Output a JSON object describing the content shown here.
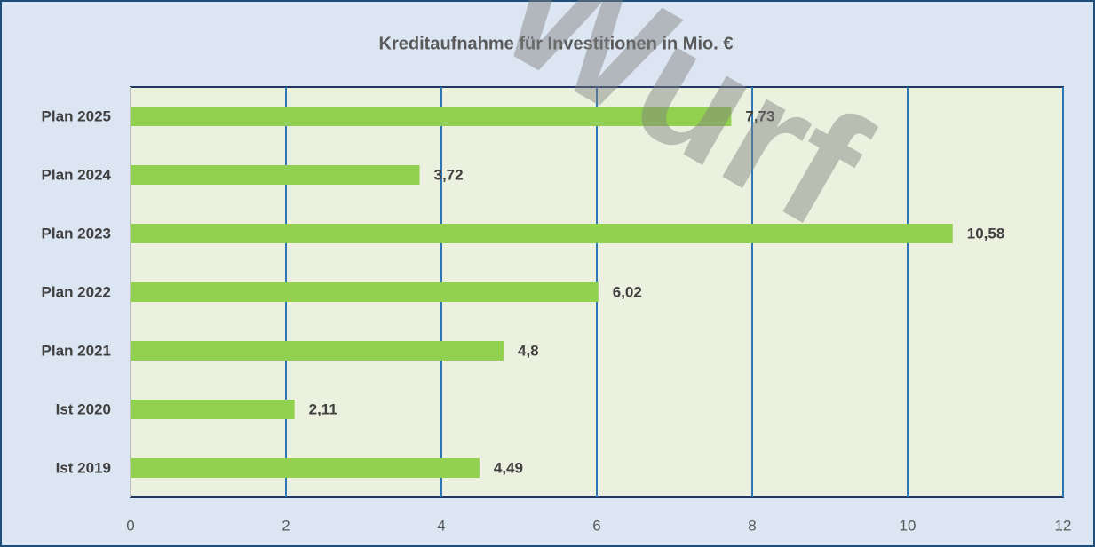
{
  "chart_data": {
    "type": "barh",
    "title": "Kreditaufnahme für Investitionen in Mio. €",
    "watermark": "Wurf",
    "categories": [
      "Ist 2019",
      "Ist 2020",
      "Plan 2021",
      "Plan 2022",
      "Plan 2023",
      "Plan 2024",
      "Plan 2025"
    ],
    "values": [
      4.49,
      2.11,
      4.8,
      6.02,
      10.58,
      3.72,
      7.73
    ],
    "value_labels": [
      "4,49",
      "2,11",
      "4,8",
      "6,02",
      "10,58",
      "3,72",
      "7,73"
    ],
    "color": "#92d050",
    "xlim": [
      0,
      12
    ],
    "xticks": [
      0,
      2,
      4,
      6,
      8,
      10,
      12
    ],
    "grid": true
  }
}
